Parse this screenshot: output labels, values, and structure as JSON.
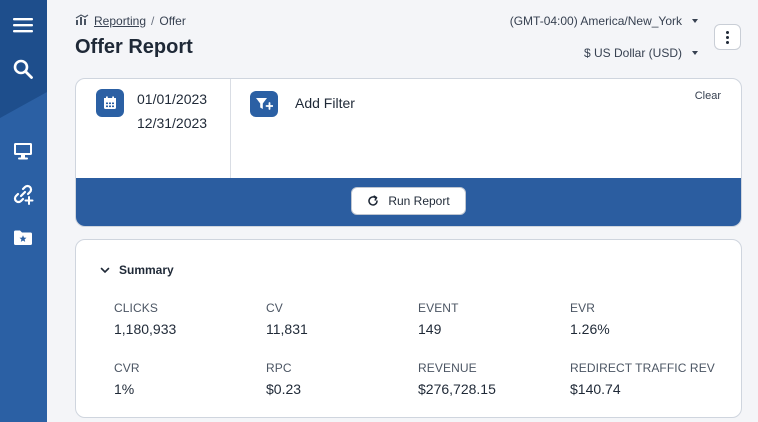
{
  "sidebar": {
    "items": [
      {
        "icon": "menu-icon"
      },
      {
        "icon": "search-icon"
      },
      {
        "icon": "monitor-icon"
      },
      {
        "icon": "link-add-icon"
      },
      {
        "icon": "folder-star-icon"
      }
    ],
    "colors": {
      "background": "#2b60a4",
      "top_zone": "#1e4e8c"
    }
  },
  "breadcrumb": {
    "icon": "reporting-chart-icon",
    "items": [
      "Reporting",
      "Offer"
    ],
    "separator": "/"
  },
  "page": {
    "title": "Offer Report"
  },
  "settings": {
    "timezone": "(GMT-04:00) America/New_York",
    "currency": "$ US Dollar (USD)"
  },
  "filters": {
    "date_from": "01/01/2023",
    "date_to": "12/31/2023",
    "add_filter_label": "Add Filter",
    "clear_label": "Clear",
    "run_report_label": "Run Report"
  },
  "summary": {
    "title": "Summary",
    "metrics": [
      {
        "label": "CLICKS",
        "value": "1,180,933"
      },
      {
        "label": "CV",
        "value": "11,831"
      },
      {
        "label": "EVENT",
        "value": "149"
      },
      {
        "label": "EVR",
        "value": "1.26%"
      },
      {
        "label": "CVR",
        "value": "1%"
      },
      {
        "label": "RPC",
        "value": "$0.23"
      },
      {
        "label": "REVENUE",
        "value": "$276,728.15"
      },
      {
        "label": "REDIRECT TRAFFIC REV",
        "value": "$140.74"
      }
    ]
  },
  "colors": {
    "accent": "#2b60a4",
    "band": "#2b5da0",
    "page_bg": "#f4f5f8"
  }
}
